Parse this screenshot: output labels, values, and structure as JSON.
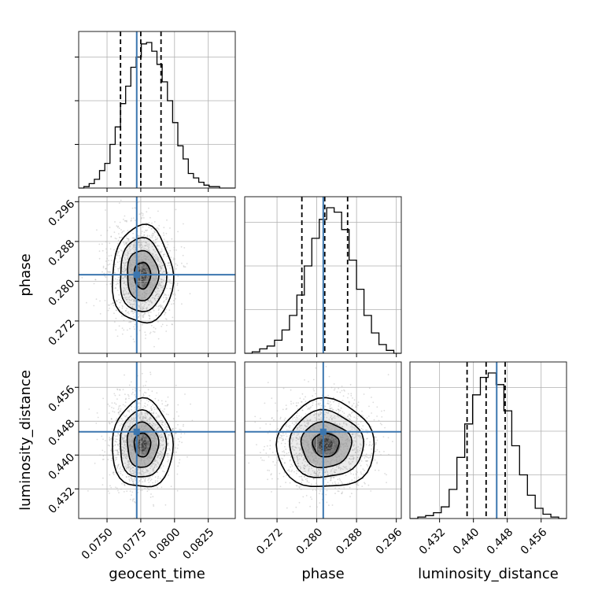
{
  "chart_data": {
    "type": "corner",
    "parameters": [
      "geocent_time",
      "phase",
      "luminosity_distance"
    ],
    "grid": true,
    "colors": {
      "truth": "#3b76af",
      "hist": "#000000",
      "scatter": "#9a9a9a",
      "grid": "#b0b0b0"
    },
    "truths": {
      "geocent_time": 0.0772,
      "phase": 0.2813,
      "luminosity_distance": 0.4455
    },
    "histograms": [
      {
        "param": "geocent_time",
        "range": [
          0.0729,
          0.0845
        ],
        "counts": [
          0,
          1,
          3,
          6,
          12,
          17,
          30,
          42,
          58,
          70,
          83,
          90,
          99,
          100,
          94,
          85,
          73,
          60,
          45,
          29,
          20,
          10,
          7,
          4,
          2,
          1,
          1,
          0,
          0,
          0
        ],
        "quantiles": [
          0.076,
          0.0775,
          0.079
        ]
      },
      {
        "param": "phase",
        "range": [
          0.2655,
          0.297
        ],
        "counts": [
          0,
          1,
          3,
          5,
          9,
          16,
          26,
          40,
          60,
          79,
          92,
          100,
          97,
          85,
          64,
          44,
          26,
          14,
          6,
          2,
          0
        ],
        "quantiles": [
          0.277,
          0.2816,
          0.2862
        ]
      },
      {
        "param": "luminosity_distance",
        "range": [
          0.425,
          0.462
        ],
        "counts": [
          0,
          1,
          2,
          4,
          8,
          20,
          42,
          65,
          85,
          97,
          100,
          92,
          74,
          50,
          30,
          16,
          7,
          3,
          1,
          0
        ],
        "quantiles": [
          0.4385,
          0.443,
          0.4475
        ]
      }
    ],
    "scatter_panels": [
      {
        "x": "geocent_time",
        "y": "phase",
        "mean": [
          0.0775,
          0.2815
        ],
        "sd": [
          0.0011,
          0.0048
        ]
      },
      {
        "x": "geocent_time",
        "y": "luminosity_distance",
        "mean": [
          0.0775,
          0.4428
        ],
        "sd": [
          0.0011,
          0.0051
        ]
      },
      {
        "x": "phase",
        "y": "luminosity_distance",
        "mean": [
          0.2815,
          0.4428
        ],
        "sd": [
          0.0048,
          0.0051
        ]
      }
    ],
    "axes": {
      "geocent_time": {
        "lim": [
          0.0729,
          0.0845
        ],
        "ticks": [
          "0.0750",
          "0.0775",
          "0.0800",
          "0.0825"
        ],
        "label": "geocent_time"
      },
      "phase": {
        "lim": [
          0.2655,
          0.297
        ],
        "ticks": [
          "0.272",
          "0.280",
          "0.288",
          "0.296"
        ],
        "label": "phase"
      },
      "luminosity_distance": {
        "lim": [
          0.425,
          0.462
        ],
        "ticks": [
          "0.432",
          "0.440",
          "0.448",
          "0.456"
        ],
        "label": "luminosity_distance"
      }
    }
  }
}
